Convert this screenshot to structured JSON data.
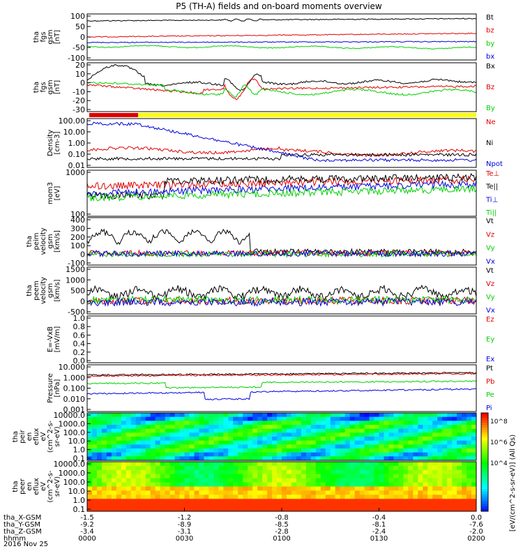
{
  "title": "P5 (TH-A) fields and on-board moments overview",
  "date_label": "2016 Nov 25",
  "colors": {
    "black": "#000000",
    "red": "#e00000",
    "blue": "#0000e0",
    "green": "#00d000",
    "yellow": "#ffff00"
  },
  "chart_data": [
    {
      "id": "p1",
      "type": "line",
      "ylabel": [
        "tha",
        "fgs",
        "gsm",
        "[nT]"
      ],
      "yticks": [
        "100",
        "50",
        "0",
        "-50",
        "-100"
      ],
      "series": [
        {
          "name": "Bt",
          "color": "#000000"
        },
        {
          "name": "bz",
          "color": "#e00000"
        },
        {
          "name": "by",
          "color": "#00d000"
        },
        {
          "name": "bx",
          "color": "#0000e0"
        }
      ]
    },
    {
      "id": "p2",
      "type": "line",
      "ylabel": [
        "tha",
        "fgs",
        "gsm",
        "[nT]"
      ],
      "yticks": [
        "20",
        "10",
        "0",
        "-10",
        "-20",
        "-30"
      ],
      "series": [
        {
          "name": "Bx",
          "color": "#000000"
        },
        {
          "name": "Bz",
          "color": "#e00000"
        },
        {
          "name": "By",
          "color": "#00d000"
        }
      ]
    },
    {
      "id": "p3",
      "type": "line",
      "ylabel": [
        "Density",
        "[cm-3]"
      ],
      "yticks": [
        "100.00",
        "10.00",
        "1.00",
        "0.10",
        "0.01"
      ],
      "series": [
        {
          "name": "Ne",
          "color": "#e00000"
        },
        {
          "name": "Ni",
          "color": "#000000"
        },
        {
          "name": "Npot",
          "color": "#0000e0"
        }
      ]
    },
    {
      "id": "p4",
      "type": "line",
      "ylabel": [
        "mom3",
        "[eV]"
      ],
      "yticks": [
        "1000",
        "100"
      ],
      "series": [
        {
          "name": "Te⊥",
          "color": "#e00000"
        },
        {
          "name": "Te||",
          "color": "#000000"
        },
        {
          "name": "Ti⊥",
          "color": "#0000e0"
        },
        {
          "name": "Ti||",
          "color": "#00d000"
        }
      ]
    },
    {
      "id": "p5",
      "type": "line",
      "ylabel": [
        "tha",
        "peim",
        "velocity",
        "gsm",
        "[km/s]"
      ],
      "yticks": [
        "400",
        "300",
        "200",
        "100",
        "0",
        "-100"
      ],
      "series": [
        {
          "name": "Vt",
          "color": "#000000"
        },
        {
          "name": "Vz",
          "color": "#e00000"
        },
        {
          "name": "Vy",
          "color": "#00d000"
        },
        {
          "name": "Vx",
          "color": "#0000e0"
        }
      ]
    },
    {
      "id": "p6",
      "type": "line",
      "ylabel": [
        "tha",
        "peem",
        "velocity",
        "gsm",
        "[km/s]"
      ],
      "yticks": [
        "1500",
        "1000",
        "500",
        "0",
        "-500"
      ],
      "series": [
        {
          "name": "Vt",
          "color": "#000000"
        },
        {
          "name": "Vz",
          "color": "#e00000"
        },
        {
          "name": "Vy",
          "color": "#00d000"
        },
        {
          "name": "Vx",
          "color": "#0000e0"
        }
      ]
    },
    {
      "id": "p7",
      "type": "line",
      "ylabel": [
        "E=-VxB",
        "[mV/m]"
      ],
      "yticks": [
        "1.0",
        "0.8",
        "0.6",
        "0.4",
        "0.2",
        "0.0"
      ],
      "series": [
        {
          "name": "Ez",
          "color": "#e00000"
        },
        {
          "name": "Ey",
          "color": "#00d000"
        },
        {
          "name": "Ex",
          "color": "#0000e0"
        }
      ]
    },
    {
      "id": "p8",
      "type": "line",
      "ylabel": [
        "Pressure",
        "[nPa]"
      ],
      "yticks": [
        "10.000",
        "1.000",
        "0.100",
        "0.010",
        "0.001"
      ],
      "series": [
        {
          "name": "Pt",
          "color": "#000000"
        },
        {
          "name": "Pb",
          "color": "#e00000"
        },
        {
          "name": "Pe",
          "color": "#00d000"
        },
        {
          "name": "Pi",
          "color": "#0000e0"
        }
      ]
    },
    {
      "id": "p9",
      "type": "heatmap",
      "ylabel": [
        "tha",
        "peir",
        "en",
        "eflux",
        "eV",
        "(cm^2-s-",
        "sr-eV)"
      ],
      "yticks": [
        "10000.0",
        "1000.0",
        "100.0",
        "10.0",
        "1.0",
        "0.1"
      ]
    },
    {
      "id": "p10",
      "type": "heatmap",
      "ylabel": [
        "tha",
        "peer",
        "en",
        "eflux",
        "eV",
        "(cm^2-s-",
        "sr-eV)"
      ],
      "yticks": [
        "10000.0",
        "1000.0",
        "100.0",
        "10.0",
        "1.0",
        "0.1"
      ]
    }
  ],
  "colorbar": {
    "label": "[eV/(cm^2-s-sr-eV)] (All Qs)",
    "ticks": [
      "10^8",
      "10^6",
      "10^4"
    ]
  },
  "xaxis": {
    "rows": [
      {
        "label": "tha_X-GSM",
        "values": [
          "-1.5",
          "-1.2",
          "-0.8",
          "-0.4",
          "0.0"
        ]
      },
      {
        "label": "tha_Y-GSM",
        "values": [
          "-9.2",
          "-8.9",
          "-8.5",
          "-8.1",
          "-7.6"
        ]
      },
      {
        "label": "tha_Z-GSM",
        "values": [
          "-3.4",
          "-3.1",
          "-2.8",
          "-2.4",
          "-2.0"
        ]
      },
      {
        "label": "hhmm",
        "values": [
          "0000",
          "0030",
          "0100",
          "0130",
          "0200"
        ]
      }
    ]
  }
}
